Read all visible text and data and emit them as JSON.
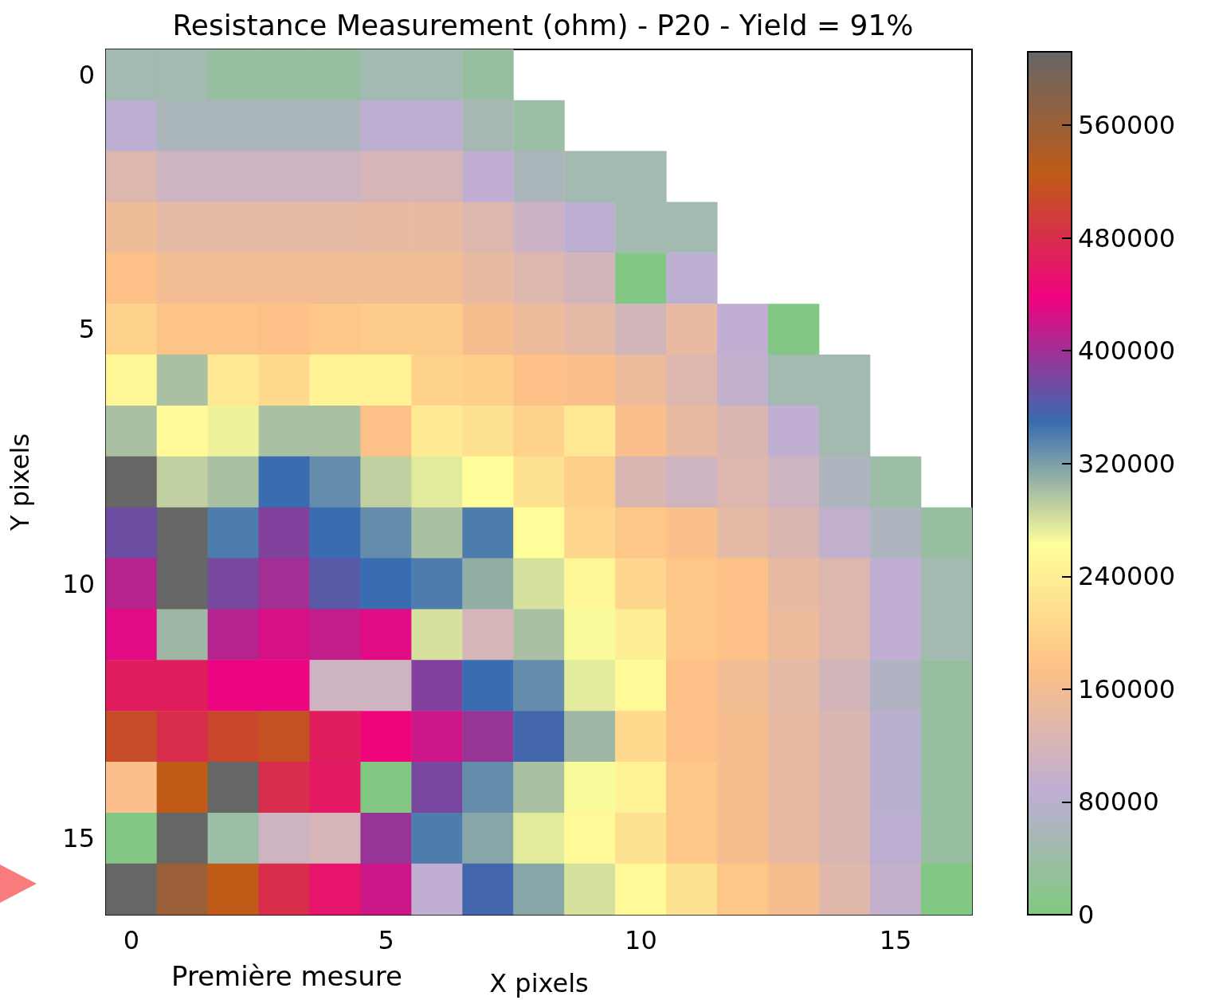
{
  "chart_data": {
    "type": "heatmap",
    "title": "Resistance Measurement (ohm) - P20 - Yield = 91%",
    "xlabel": "X pixels",
    "ylabel": "Y pixels",
    "categories": [
      "0",
      null,
      null,
      null,
      null,
      "5",
      null,
      null,
      null,
      null,
      "10",
      null,
      null,
      null,
      null,
      "15",
      null
    ],
    "y_categories": [
      "0",
      null,
      null,
      null,
      null,
      "5",
      null,
      null,
      null,
      null,
      "10",
      null,
      null,
      null,
      null,
      "15",
      null
    ],
    "cells": [
      [
        50000,
        50000,
        35000,
        35000,
        35000,
        50000,
        50000,
        35000,
        null,
        null,
        null,
        null,
        null,
        null,
        null,
        null,
        null
      ],
      [
        85000,
        60000,
        60000,
        60000,
        60000,
        85000,
        85000,
        55000,
        40000,
        null,
        null,
        null,
        null,
        null,
        null,
        null,
        null
      ],
      [
        130000,
        110000,
        110000,
        110000,
        110000,
        120000,
        120000,
        90000,
        60000,
        50000,
        50000,
        null,
        null,
        null,
        null,
        null,
        null
      ],
      [
        155000,
        140000,
        140000,
        140000,
        140000,
        145000,
        145000,
        130000,
        105000,
        85000,
        50000,
        50000,
        null,
        null,
        null,
        null,
        null
      ],
      [
        175000,
        160000,
        160000,
        160000,
        160000,
        160000,
        160000,
        145000,
        130000,
        115000,
        5000,
        85000,
        null,
        null,
        null,
        null,
        null
      ],
      [
        200000,
        180000,
        180000,
        175000,
        185000,
        190000,
        190000,
        165000,
        150000,
        140000,
        115000,
        145000,
        90000,
        5000,
        null,
        null,
        null
      ],
      [
        250000,
        300000,
        230000,
        210000,
        245000,
        245000,
        200000,
        195000,
        175000,
        170000,
        150000,
        130000,
        95000,
        50000,
        50000,
        null,
        null
      ],
      [
        300000,
        255000,
        270000,
        300000,
        300000,
        175000,
        235000,
        220000,
        200000,
        230000,
        170000,
        145000,
        125000,
        90000,
        50000,
        null,
        null
      ],
      [
        612000,
        290000,
        300000,
        350000,
        330000,
        290000,
        275000,
        260000,
        220000,
        195000,
        125000,
        110000,
        130000,
        110000,
        65000,
        40000,
        null
      ],
      [
        375000,
        612000,
        340000,
        385000,
        350000,
        330000,
        300000,
        340000,
        260000,
        205000,
        185000,
        170000,
        140000,
        125000,
        95000,
        65000,
        35000
      ],
      [
        410000,
        612000,
        380000,
        400000,
        365000,
        350000,
        340000,
        310000,
        280000,
        250000,
        205000,
        185000,
        175000,
        145000,
        130000,
        90000,
        50000
      ],
      [
        430000,
        305000,
        410000,
        425000,
        415000,
        430000,
        280000,
        120000,
        300000,
        265000,
        240000,
        185000,
        175000,
        150000,
        130000,
        90000,
        50000
      ],
      [
        465000,
        465000,
        435000,
        435000,
        110000,
        110000,
        385000,
        350000,
        330000,
        275000,
        255000,
        175000,
        160000,
        140000,
        115000,
        70000,
        35000
      ],
      [
        510000,
        480000,
        505000,
        515000,
        465000,
        440000,
        420000,
        395000,
        355000,
        305000,
        210000,
        175000,
        165000,
        145000,
        125000,
        80000,
        35000
      ],
      [
        170000,
        525000,
        612000,
        480000,
        460000,
        5000,
        380000,
        330000,
        300000,
        265000,
        245000,
        185000,
        165000,
        145000,
        125000,
        80000,
        35000
      ],
      [
        5000,
        612000,
        40000,
        110000,
        120000,
        395000,
        340000,
        315000,
        275000,
        255000,
        220000,
        185000,
        165000,
        145000,
        125000,
        85000,
        35000
      ],
      [
        612000,
        560000,
        525000,
        480000,
        455000,
        420000,
        90000,
        355000,
        315000,
        280000,
        255000,
        220000,
        185000,
        165000,
        135000,
        95000,
        5000
      ]
    ],
    "clim": [
      0,
      612000
    ],
    "cticks": [
      0,
      80000,
      160000,
      240000,
      320000,
      400000,
      480000,
      560000
    ],
    "annotations": [
      "Première mesure"
    ]
  }
}
